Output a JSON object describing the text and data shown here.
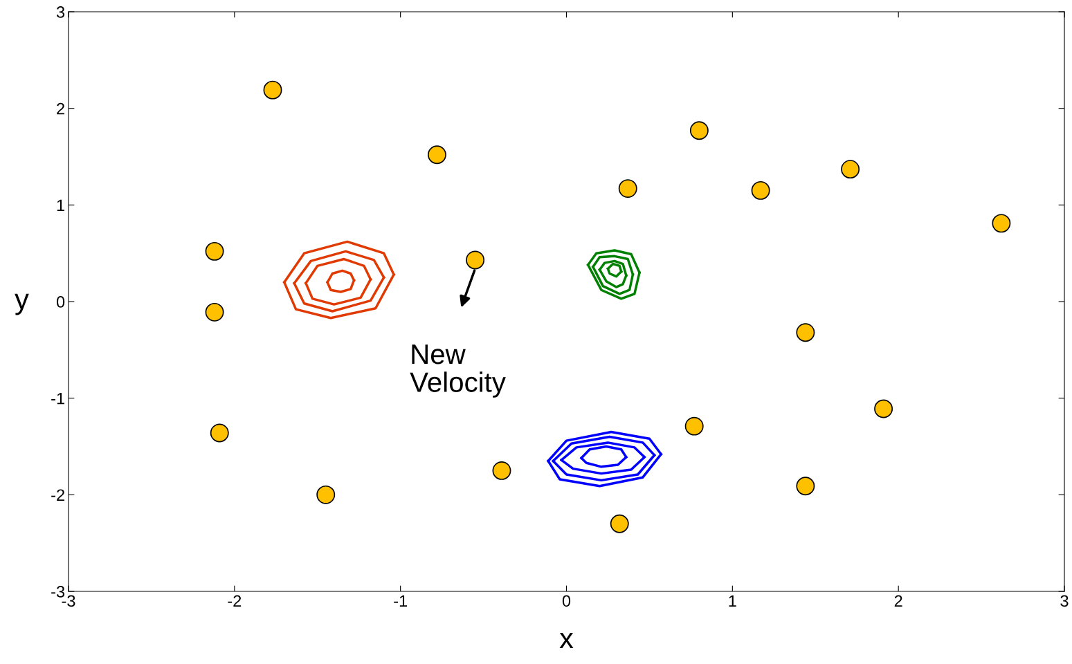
{
  "chart_data": {
    "type": "scatter",
    "xlabel": "x",
    "ylabel": "y",
    "xlim": [
      -3,
      3
    ],
    "ylim": [
      -3,
      3
    ],
    "xticks": [
      -3,
      -2,
      -1,
      0,
      1,
      2,
      3
    ],
    "yticks": [
      -3,
      -2,
      -1,
      0,
      1,
      2,
      3
    ],
    "grid": false,
    "legend": false,
    "annotations": [
      {
        "text": "New\nVelocity",
        "x": -0.55,
        "y": 0.34
      }
    ],
    "series": [
      {
        "marker": "circle",
        "color": "#ffc000",
        "x": [
          -1.77,
          -0.78,
          0.8,
          0.37,
          1.17,
          1.71,
          2.62,
          -2.12,
          -0.55,
          -2.12,
          1.44,
          1.91,
          -2.09,
          0.77,
          -0.39,
          -1.45,
          1.44,
          0.32
        ],
        "values": [
          2.19,
          1.52,
          1.77,
          1.17,
          1.15,
          1.37,
          0.81,
          0.52,
          0.43,
          -0.11,
          -0.32,
          -1.11,
          -1.36,
          -1.29,
          -1.75,
          -2.0,
          -1.91,
          -2.3
        ]
      },
      {
        "type": "line",
        "marker": "none",
        "color": "#e03a00",
        "x": [
          -1.7,
          -1.58,
          -1.32,
          -1.1,
          -1.04
        ],
        "values": [
          0.2,
          0.5,
          0.62,
          0.5,
          0.28
        ]
      },
      {
        "type": "line",
        "marker": "none",
        "color": "#e03a00",
        "x": [
          -1.7,
          -1.63,
          -1.42,
          -1.15,
          -1.04
        ],
        "values": [
          0.2,
          -0.08,
          -0.17,
          -0.07,
          0.28
        ]
      },
      {
        "type": "line",
        "marker": "none",
        "color": "#e03a00",
        "x": [
          -1.64,
          -1.54,
          -1.33,
          -1.16,
          -1.1
        ],
        "values": [
          0.19,
          0.42,
          0.52,
          0.43,
          0.25
        ]
      },
      {
        "type": "line",
        "marker": "none",
        "color": "#e03a00",
        "x": [
          -1.64,
          -1.58,
          -1.41,
          -1.18,
          -1.1
        ],
        "values": [
          0.19,
          -0.02,
          -0.1,
          0.01,
          0.25
        ]
      },
      {
        "type": "line",
        "marker": "none",
        "color": "#e03a00",
        "x": [
          -1.57,
          -1.5,
          -1.34,
          -1.22,
          -1.18
        ],
        "values": [
          0.19,
          0.37,
          0.44,
          0.37,
          0.23
        ]
      },
      {
        "type": "line",
        "marker": "none",
        "color": "#e03a00",
        "x": [
          -1.57,
          -1.53,
          -1.4,
          -1.24,
          -1.18
        ],
        "values": [
          0.19,
          0.03,
          -0.03,
          0.04,
          0.23
        ]
      },
      {
        "type": "line",
        "marker": "none",
        "color": "#e03a00",
        "x": [
          -1.44,
          -1.41,
          -1.35,
          -1.3,
          -1.28
        ],
        "values": [
          0.2,
          0.29,
          0.32,
          0.29,
          0.22
        ]
      },
      {
        "type": "line",
        "marker": "none",
        "color": "#e03a00",
        "x": [
          -1.44,
          -1.42,
          -1.36,
          -1.3,
          -1.28
        ],
        "values": [
          0.2,
          0.12,
          0.1,
          0.13,
          0.22
        ]
      },
      {
        "type": "line",
        "marker": "none",
        "color": "#008000",
        "x": [
          0.13,
          0.18,
          0.29,
          0.39,
          0.44
        ],
        "values": [
          0.38,
          0.5,
          0.53,
          0.49,
          0.3
        ]
      },
      {
        "type": "line",
        "marker": "none",
        "color": "#008000",
        "x": [
          0.13,
          0.21,
          0.33,
          0.41,
          0.44
        ],
        "values": [
          0.38,
          0.12,
          0.03,
          0.08,
          0.3
        ]
      },
      {
        "type": "line",
        "marker": "none",
        "color": "#008000",
        "x": [
          0.16,
          0.2,
          0.29,
          0.37,
          0.4
        ],
        "values": [
          0.36,
          0.46,
          0.47,
          0.44,
          0.28
        ]
      },
      {
        "type": "line",
        "marker": "none",
        "color": "#008000",
        "x": [
          0.16,
          0.22,
          0.32,
          0.38,
          0.4
        ],
        "values": [
          0.36,
          0.16,
          0.08,
          0.12,
          0.28
        ]
      },
      {
        "type": "line",
        "marker": "none",
        "color": "#008000",
        "x": [
          0.2,
          0.23,
          0.29,
          0.34,
          0.36
        ],
        "values": [
          0.33,
          0.4,
          0.42,
          0.39,
          0.27
        ]
      },
      {
        "type": "line",
        "marker": "none",
        "color": "#008000",
        "x": [
          0.2,
          0.24,
          0.3,
          0.34,
          0.36
        ],
        "values": [
          0.33,
          0.21,
          0.15,
          0.18,
          0.27
        ]
      },
      {
        "type": "line",
        "marker": "none",
        "color": "#008000",
        "x": [
          0.25,
          0.28,
          0.32,
          0.33
        ],
        "values": [
          0.34,
          0.39,
          0.37,
          0.31
        ]
      },
      {
        "type": "line",
        "marker": "none",
        "color": "#008000",
        "x": [
          0.25,
          0.26,
          0.3,
          0.33
        ],
        "values": [
          0.34,
          0.29,
          0.26,
          0.31
        ]
      },
      {
        "type": "line",
        "marker": "none",
        "color": "#0000ff",
        "x": [
          -0.11,
          0.0,
          0.27,
          0.5,
          0.57
        ],
        "values": [
          -1.65,
          -1.44,
          -1.35,
          -1.42,
          -1.58
        ]
      },
      {
        "type": "line",
        "marker": "none",
        "color": "#0000ff",
        "x": [
          -0.11,
          -0.04,
          0.2,
          0.46,
          0.57
        ],
        "values": [
          -1.65,
          -1.84,
          -1.91,
          -1.82,
          -1.58
        ]
      },
      {
        "type": "line",
        "marker": "none",
        "color": "#0000ff",
        "x": [
          -0.08,
          0.03,
          0.26,
          0.46,
          0.53
        ],
        "values": [
          -1.65,
          -1.47,
          -1.4,
          -1.46,
          -1.59
        ]
      },
      {
        "type": "line",
        "marker": "none",
        "color": "#0000ff",
        "x": [
          -0.08,
          0.0,
          0.21,
          0.43,
          0.53
        ],
        "values": [
          -1.65,
          -1.79,
          -1.85,
          -1.79,
          -1.59
        ]
      },
      {
        "type": "line",
        "marker": "none",
        "color": "#0000ff",
        "x": [
          -0.03,
          0.06,
          0.25,
          0.41,
          0.47
        ],
        "values": [
          -1.64,
          -1.51,
          -1.46,
          -1.51,
          -1.61
        ]
      },
      {
        "type": "line",
        "marker": "none",
        "color": "#0000ff",
        "x": [
          -0.03,
          0.04,
          0.21,
          0.39,
          0.47
        ],
        "values": [
          -1.64,
          -1.73,
          -1.78,
          -1.74,
          -1.61
        ]
      },
      {
        "type": "line",
        "marker": "none",
        "color": "#0000ff",
        "x": [
          0.09,
          0.14,
          0.24,
          0.33,
          0.36
        ],
        "values": [
          -1.62,
          -1.53,
          -1.5,
          -1.53,
          -1.61
        ]
      },
      {
        "type": "line",
        "marker": "none",
        "color": "#0000ff",
        "x": [
          0.09,
          0.12,
          0.21,
          0.31,
          0.36
        ],
        "values": [
          -1.62,
          -1.67,
          -1.71,
          -1.69,
          -1.61
        ]
      }
    ]
  }
}
